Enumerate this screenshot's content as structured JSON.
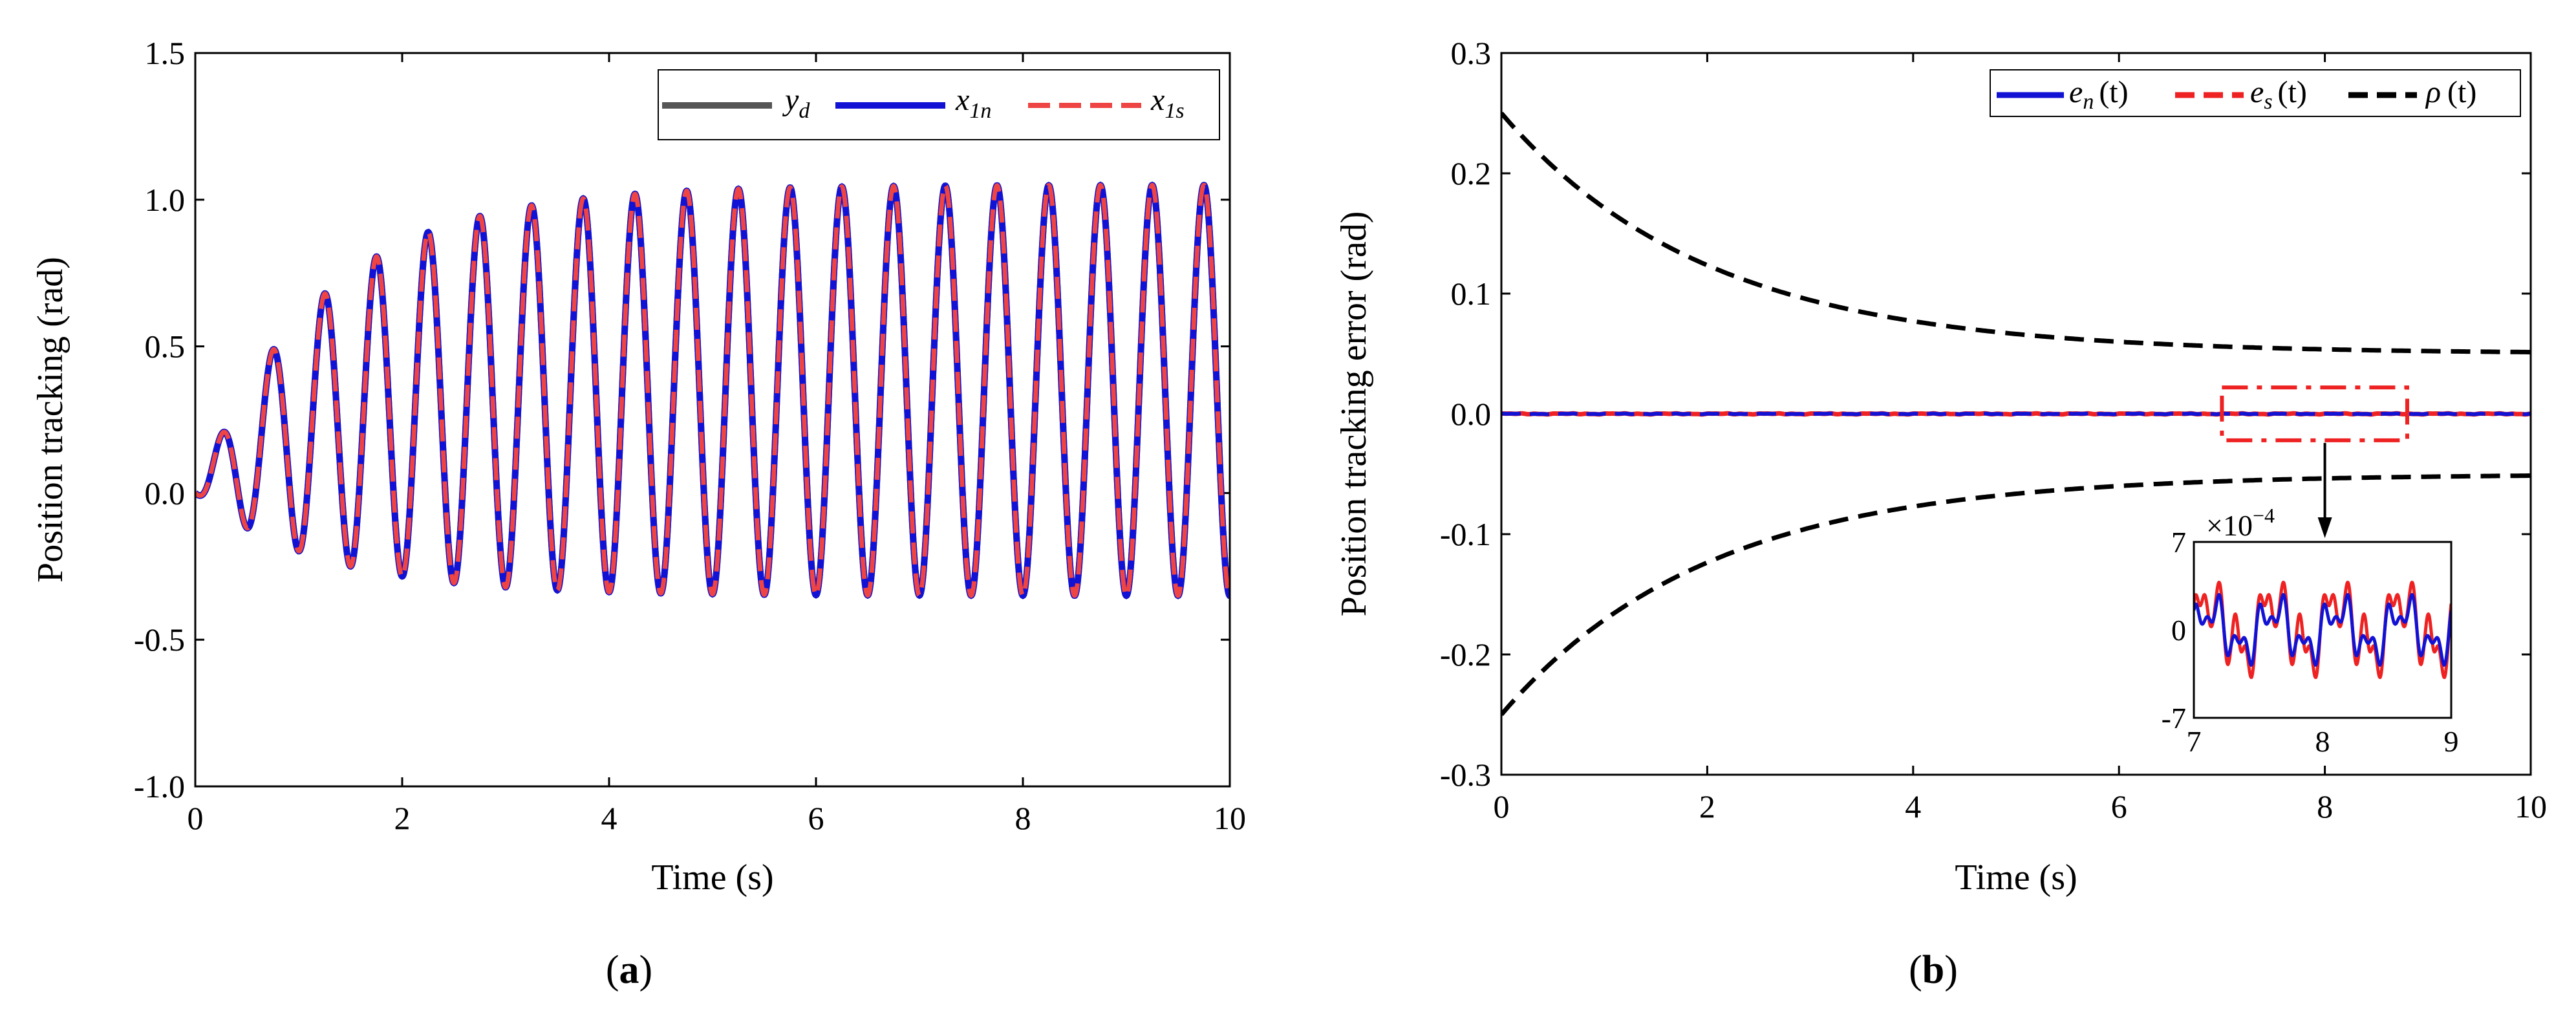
{
  "chart_data": [
    {
      "panel": "(a)",
      "type": "line",
      "xlabel": "Time (s)",
      "ylabel": "Position tracking (rad)",
      "xlim": [
        0,
        10
      ],
      "ylim": [
        -1.0,
        1.5
      ],
      "xticks": [
        "0",
        "2",
        "4",
        "6",
        "8",
        "10"
      ],
      "yticks": [
        "-1.0",
        "-0.5",
        "0.0",
        "0.5",
        "1.0",
        "1.5"
      ],
      "signal": {
        "description": "chirp-like oscillation, period 0.5 s, amplitude rising from 0 to ~0.7, centered near 0.35",
        "frequency_hz": 2.0,
        "offset": 0.35,
        "amplitude_max": 0.7,
        "time_constant_s": 1.2,
        "peaks": [
          0.25,
          0.55,
          0.75,
          0.87,
          0.94,
          0.98,
          1.01,
          1.03,
          1.04,
          1.05
        ],
        "troughs": [
          -0.12,
          -0.22,
          -0.27,
          -0.3,
          -0.32,
          -0.34,
          -0.35,
          -0.35
        ]
      },
      "series": [
        {
          "name": "y",
          "sub": "d",
          "color": "#555555",
          "dash": "solid"
        },
        {
          "name": "x",
          "sub": "1n",
          "color": "#1212d4",
          "dash": "solid"
        },
        {
          "name": "x",
          "sub": "1s",
          "color": "#ee4444",
          "dash": "dashed"
        }
      ],
      "legend_position": "top-right"
    },
    {
      "panel": "(b)",
      "type": "line",
      "xlabel": "Time (s)",
      "ylabel": "Position tracking error (rad)",
      "xlim": [
        0,
        10
      ],
      "ylim": [
        -0.3,
        0.3
      ],
      "xticks": [
        "0",
        "2",
        "4",
        "6",
        "8",
        "10"
      ],
      "yticks": [
        "-0.3",
        "-0.2",
        "-0.1",
        "0.0",
        "0.1",
        "0.2",
        "0.3"
      ],
      "rho": {
        "rho0": 0.25,
        "rho_inf": 0.05,
        "decay_rate": 0.5
      },
      "series": [
        {
          "name": "e",
          "sub": "n",
          "arg": "(t)",
          "color": "#1212d4",
          "dash": "solid"
        },
        {
          "name": "e",
          "sub": "s",
          "arg": "(t)",
          "color": "#ee2222",
          "dash": "dashed"
        },
        {
          "name": "ρ",
          "sub": "",
          "arg": "(t)",
          "color": "#000000",
          "dash": "dashed"
        }
      ],
      "legend_position": "top-right",
      "zoom_box": {
        "x": [
          7,
          8.8
        ],
        "y": [
          -0.022,
          0.022
        ]
      },
      "inset": {
        "xlim": [
          7,
          9
        ],
        "ylim": [
          -7,
          7
        ],
        "xticks": [
          "7",
          "8",
          "9"
        ],
        "yticks": [
          "7",
          "0",
          "-7"
        ],
        "scale_base": "×10",
        "scale_exp": "−4",
        "unit": 0.0001
      }
    }
  ]
}
